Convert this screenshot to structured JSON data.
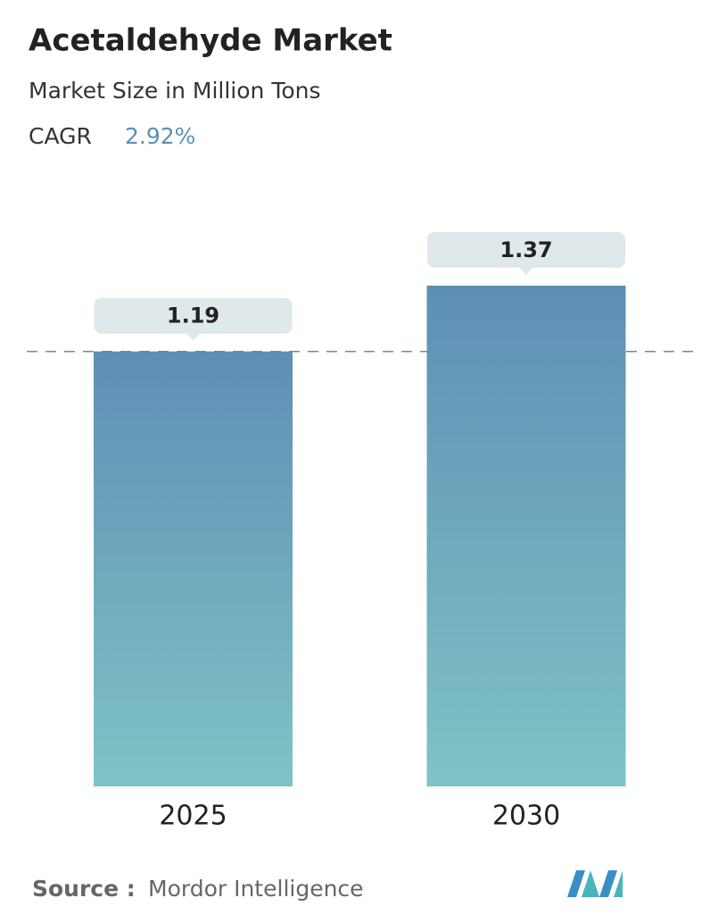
{
  "chart_data": {
    "type": "bar",
    "title": "Acetaldehyde Market",
    "subtitle": "Market Size in Million Tons",
    "cagr_label": "CAGR",
    "cagr": "2.92%",
    "categories": [
      "2025",
      "2030"
    ],
    "values": [
      1.19,
      1.37
    ],
    "colors": [
      "#5e8fb5",
      "#80c3c6"
    ],
    "source_label": "Source :",
    "source": "Mordor Intelligence"
  }
}
